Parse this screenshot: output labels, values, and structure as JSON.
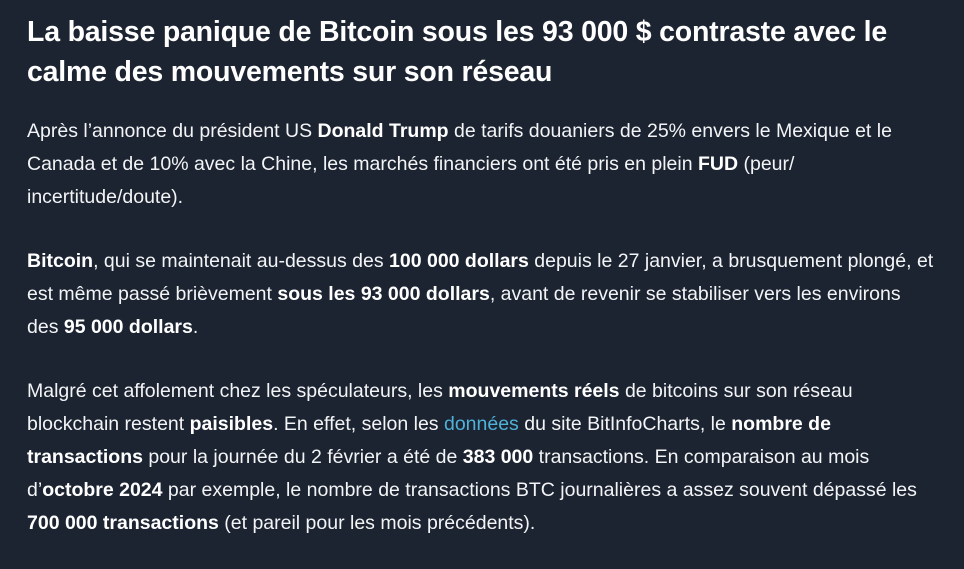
{
  "article": {
    "title": "La baisse panique de Bitcoin sous les 93 000 $ contraste avec le calme des mouvements sur son réseau",
    "p1": {
      "t1": "Après l’annonce du président US ",
      "b1": "Donald Trump",
      "t2": " de tarifs douaniers de 25% envers le Mexique et le Canada et de 10% avec la Chine, les marchés financiers ont été pris en plein ",
      "b2": "FUD",
      "t3": " (peur/ incertitude/doute)."
    },
    "p2": {
      "b1": "Bitcoin",
      "t1": ", qui se maintenait au-dessus des ",
      "b2": "100 000 dollars",
      "t2": " depuis le 27 janvier, a brusquement plongé, et est même passé brièvement ",
      "b3": "sous les 93 000 dollars",
      "t3": ", avant de revenir se stabiliser vers les environs des ",
      "b4": "95 000 dollars",
      "t4": "."
    },
    "p3": {
      "t1": "Malgré cet affolement chez les spéculateurs, les ",
      "b1": "mouvements réels",
      "t2": " de bitcoins sur son réseau blockchain restent ",
      "b2": "paisibles",
      "t3": ". En effet, selon les ",
      "link": "données",
      "t4": " du site BitInfoCharts, le ",
      "b3": "nombre de transactions",
      "t5": " pour la journée du 2 février a été de ",
      "b4": "383 000",
      "t6": " transactions. En comparaison au mois d’",
      "b5": "octobre 2024",
      "t7": " par exemple, le nombre de transactions BTC journalières a assez souvent dépassé les ",
      "b6": "700 000 transactions",
      "t8": " (et pareil pour les mois précédents)."
    }
  }
}
